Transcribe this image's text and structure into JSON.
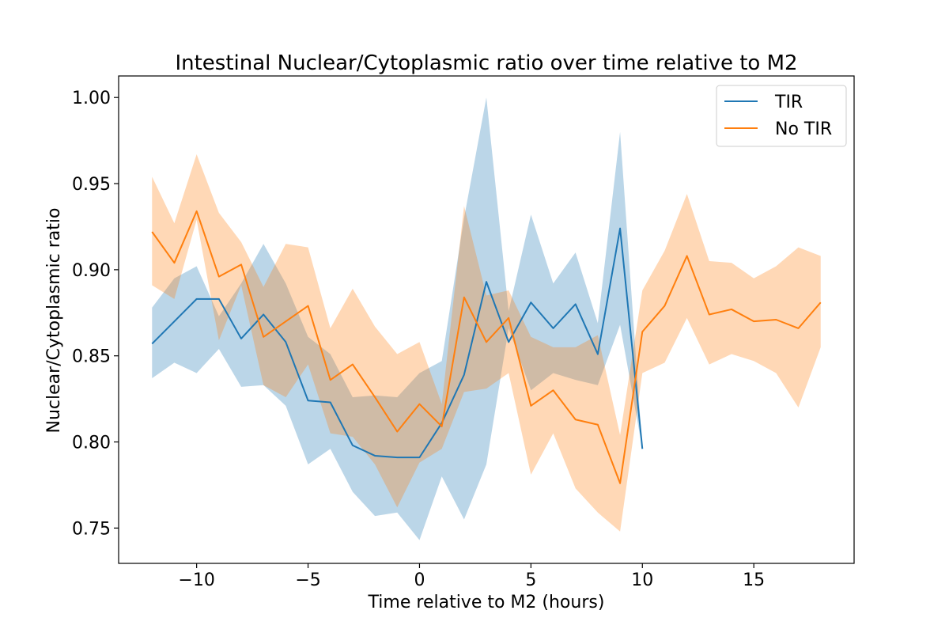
{
  "chart_data": {
    "type": "line",
    "title": "Intestinal Nuclear/Cytoplasmic ratio over time relative to M2",
    "xlabel": "Time relative to M2 (hours)",
    "ylabel": "Nuclear/Cytoplasmic ratio",
    "xlim": [
      -13.5,
      19.5
    ],
    "ylim": [
      0.7295,
      1.0125
    ],
    "xticks": [
      -10,
      -5,
      0,
      5,
      10,
      15
    ],
    "xtick_labels": [
      "−10",
      "−5",
      "0",
      "5",
      "10",
      "15"
    ],
    "yticks": [
      0.75,
      0.8,
      0.85,
      0.9,
      0.95,
      1.0
    ],
    "ytick_labels": [
      "0.75",
      "0.80",
      "0.85",
      "0.90",
      "0.95",
      "1.00"
    ],
    "grid": false,
    "legend_position": "top-right",
    "series": [
      {
        "name": "TIR",
        "color": "#1f77b4",
        "band_opacity": 0.3,
        "x": [
          -12,
          -11,
          -10,
          -9,
          -8,
          -7,
          -6,
          -5,
          -4,
          -3,
          -2,
          -1,
          0,
          1,
          2,
          3,
          4,
          5,
          6,
          7,
          8,
          9,
          10
        ],
        "y": [
          0.857,
          0.87,
          0.883,
          0.883,
          0.86,
          0.874,
          0.858,
          0.824,
          0.823,
          0.798,
          0.792,
          0.791,
          0.791,
          0.811,
          0.839,
          0.893,
          0.858,
          0.881,
          0.866,
          0.88,
          0.851,
          0.924,
          0.796
        ],
        "lower": [
          0.837,
          0.846,
          0.84,
          0.854,
          0.832,
          0.833,
          0.821,
          0.787,
          0.796,
          0.771,
          0.757,
          0.759,
          0.743,
          0.78,
          0.755,
          0.787,
          0.866,
          0.83,
          0.84,
          0.836,
          0.833,
          0.868,
          0.796
        ],
        "upper": [
          0.878,
          0.895,
          0.902,
          0.873,
          0.892,
          0.915,
          0.892,
          0.861,
          0.851,
          0.826,
          0.827,
          0.826,
          0.84,
          0.847,
          0.93,
          1.0,
          0.876,
          0.932,
          0.892,
          0.91,
          0.869,
          0.98,
          0.796
        ]
      },
      {
        "name": "No TIR",
        "color": "#ff7f0e",
        "band_opacity": 0.3,
        "x": [
          -12,
          -11,
          -10,
          -9,
          -8,
          -7,
          -6,
          -5,
          -4,
          -3,
          -2,
          -1,
          0,
          1,
          2,
          3,
          4,
          5,
          6,
          7,
          8,
          9,
          10,
          11,
          12,
          13,
          14,
          15,
          16,
          17,
          18
        ],
        "y": [
          0.922,
          0.904,
          0.934,
          0.896,
          0.903,
          0.861,
          0.87,
          0.879,
          0.836,
          0.845,
          0.826,
          0.806,
          0.822,
          0.809,
          0.884,
          0.858,
          0.872,
          0.821,
          0.83,
          0.813,
          0.81,
          0.776,
          0.864,
          0.879,
          0.908,
          0.874,
          0.877,
          0.87,
          0.871,
          0.866,
          0.881
        ],
        "lower": [
          0.891,
          0.883,
          0.929,
          0.859,
          0.891,
          0.833,
          0.826,
          0.845,
          0.805,
          0.803,
          0.787,
          0.762,
          0.788,
          0.796,
          0.829,
          0.831,
          0.84,
          0.781,
          0.805,
          0.773,
          0.759,
          0.748,
          0.84,
          0.846,
          0.872,
          0.845,
          0.851,
          0.847,
          0.84,
          0.82,
          0.855
        ],
        "upper": [
          0.954,
          0.927,
          0.967,
          0.933,
          0.916,
          0.89,
          0.915,
          0.913,
          0.866,
          0.889,
          0.867,
          0.851,
          0.858,
          0.822,
          0.937,
          0.885,
          0.888,
          0.861,
          0.855,
          0.855,
          0.862,
          0.804,
          0.888,
          0.911,
          0.944,
          0.905,
          0.904,
          0.895,
          0.902,
          0.913,
          0.908
        ]
      }
    ]
  }
}
